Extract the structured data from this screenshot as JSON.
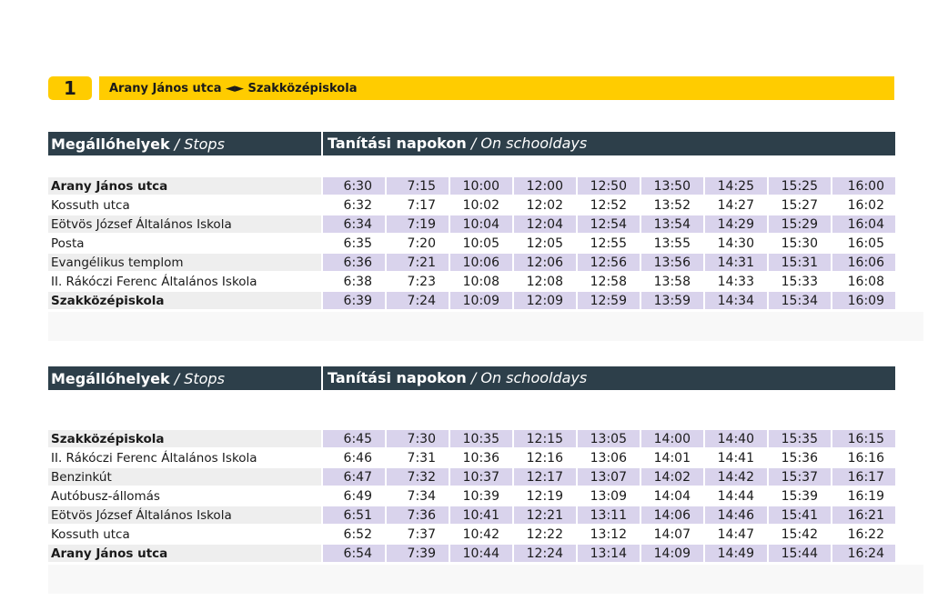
{
  "route": {
    "number": "1",
    "title": "Arany János utca ◄► Szakközépiskola"
  },
  "header": {
    "stops_bold": "Megállóhelyek",
    "stops_italic": " / Stops",
    "days_bold": "Tanítási napokon",
    "days_italic": " / On schooldays"
  },
  "outbound": {
    "rows": [
      {
        "stop": "Arany János utca",
        "bold": true,
        "times": [
          "6:30",
          "7:15",
          "10:00",
          "12:00",
          "12:50",
          "13:50",
          "14:25",
          "15:25",
          "16:00"
        ]
      },
      {
        "stop": "Kossuth utca",
        "bold": false,
        "times": [
          "6:32",
          "7:17",
          "10:02",
          "12:02",
          "12:52",
          "13:52",
          "14:27",
          "15:27",
          "16:02"
        ]
      },
      {
        "stop": "Eötvös József Általános Iskola",
        "bold": false,
        "times": [
          "6:34",
          "7:19",
          "10:04",
          "12:04",
          "12:54",
          "13:54",
          "14:29",
          "15:29",
          "16:04"
        ]
      },
      {
        "stop": "Posta",
        "bold": false,
        "times": [
          "6:35",
          "7:20",
          "10:05",
          "12:05",
          "12:55",
          "13:55",
          "14:30",
          "15:30",
          "16:05"
        ]
      },
      {
        "stop": "Evangélikus templom",
        "bold": false,
        "times": [
          "6:36",
          "7:21",
          "10:06",
          "12:06",
          "12:56",
          "13:56",
          "14:31",
          "15:31",
          "16:06"
        ]
      },
      {
        "stop": "II. Rákóczi Ferenc Általános Iskola",
        "bold": false,
        "times": [
          "6:38",
          "7:23",
          "10:08",
          "12:08",
          "12:58",
          "13:58",
          "14:33",
          "15:33",
          "16:08"
        ]
      },
      {
        "stop": "Szakközépiskola",
        "bold": true,
        "times": [
          "6:39",
          "7:24",
          "10:09",
          "12:09",
          "12:59",
          "13:59",
          "14:34",
          "15:34",
          "16:09"
        ]
      }
    ]
  },
  "inbound": {
    "rows": [
      {
        "stop": "Szakközépiskola",
        "bold": true,
        "times": [
          "6:45",
          "7:30",
          "10:35",
          "12:15",
          "13:05",
          "14:00",
          "14:40",
          "15:35",
          "16:15"
        ]
      },
      {
        "stop": "II. Rákóczi Ferenc Általános Iskola",
        "bold": false,
        "times": [
          "6:46",
          "7:31",
          "10:36",
          "12:16",
          "13:06",
          "14:01",
          "14:41",
          "15:36",
          "16:16"
        ]
      },
      {
        "stop": "Benzinkút",
        "bold": false,
        "times": [
          "6:47",
          "7:32",
          "10:37",
          "12:17",
          "13:07",
          "14:02",
          "14:42",
          "15:37",
          "16:17"
        ]
      },
      {
        "stop": "Autóbusz-állomás",
        "bold": false,
        "times": [
          "6:49",
          "7:34",
          "10:39",
          "12:19",
          "13:09",
          "14:04",
          "14:44",
          "15:39",
          "16:19"
        ]
      },
      {
        "stop": "Eötvös József Általános Iskola",
        "bold": false,
        "times": [
          "6:51",
          "7:36",
          "10:41",
          "12:21",
          "13:11",
          "14:06",
          "14:46",
          "15:41",
          "16:21"
        ]
      },
      {
        "stop": "Kossuth utca",
        "bold": false,
        "times": [
          "6:52",
          "7:37",
          "10:42",
          "12:22",
          "13:12",
          "14:07",
          "14:47",
          "15:42",
          "16:22"
        ]
      },
      {
        "stop": "Arany János utca",
        "bold": true,
        "times": [
          "6:54",
          "7:39",
          "10:44",
          "12:24",
          "13:14",
          "14:09",
          "14:49",
          "15:44",
          "16:24"
        ]
      }
    ]
  },
  "colors": {
    "route_bar": "#ffcc00",
    "header_bg": "#2d3f4a",
    "stripe_stop": "#eeeeee",
    "stripe_time": "#d9d3ec"
  }
}
